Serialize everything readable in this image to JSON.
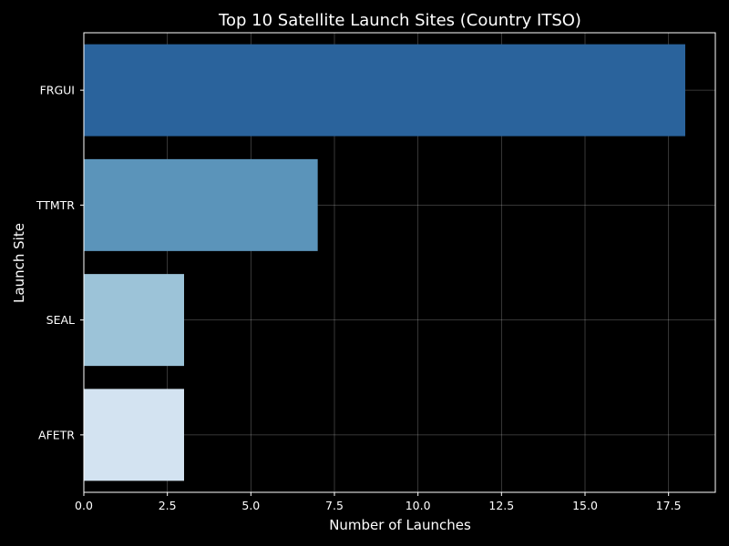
{
  "chart_data": {
    "type": "bar",
    "orientation": "horizontal",
    "title": "Top 10 Satellite Launch Sites (Country ITSO)",
    "xlabel": "Number of Launches",
    "ylabel": "Launch Site",
    "categories": [
      "FRGUI",
      "TTMTR",
      "SEAL",
      "AFETR"
    ],
    "values": [
      18,
      7,
      3,
      3
    ],
    "colors": [
      "#2a639c",
      "#5b94ba",
      "#9cc3d8",
      "#d3e3f1"
    ],
    "xlim": [
      0,
      18.9
    ],
    "xticks": [
      0,
      2.5,
      5,
      7.5,
      10,
      12.5,
      15,
      17.5
    ],
    "xtick_labels": [
      "0.0",
      "2.5",
      "5.0",
      "7.5",
      "10.0",
      "12.5",
      "15.0",
      "17.5"
    ],
    "grid": true
  }
}
